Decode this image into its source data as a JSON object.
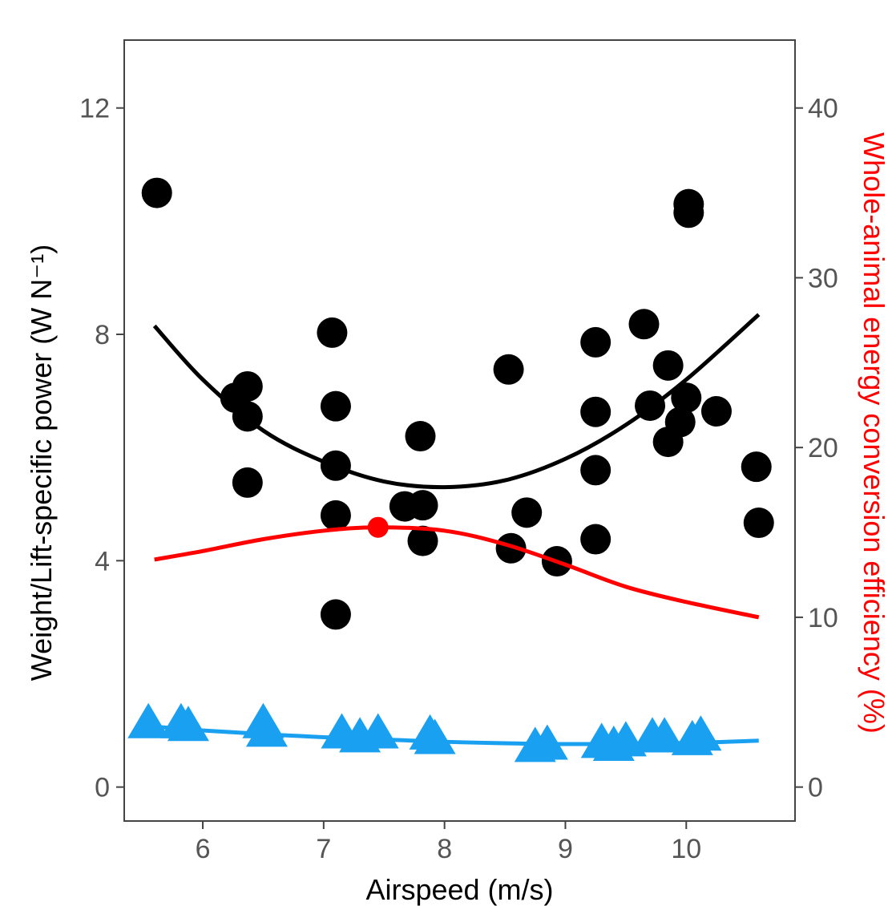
{
  "chart_data": {
    "type": "scatter",
    "xlabel": "Airspeed (m/s)",
    "ylabel_left": "Weight/Lift-specific power (W N⁻¹)",
    "ylabel_right": "Whole-animal energy conversion efficiency (%)",
    "xlim": [
      5.35,
      10.9
    ],
    "ylim_left": [
      -0.6,
      13.2
    ],
    "ylim_right": [
      -2,
      44
    ],
    "x_ticks": [
      6,
      7,
      8,
      9,
      10
    ],
    "y_left_ticks": [
      0,
      4,
      8,
      12
    ],
    "y_right_ticks": [
      0,
      10,
      20,
      30,
      40
    ],
    "grid": false,
    "colors": {
      "black_series": "#000000",
      "blue_series": "#1aa0f0",
      "red_series": "#ff0000",
      "frame": "#444444"
    },
    "series": [
      {
        "marker": "circle",
        "color": "#000000",
        "axis": "left",
        "points": [
          [
            5.62,
            10.5
          ],
          [
            6.27,
            6.88
          ],
          [
            6.37,
            7.08
          ],
          [
            6.37,
            6.55
          ],
          [
            6.37,
            5.38
          ],
          [
            7.07,
            8.03
          ],
          [
            7.1,
            6.73
          ],
          [
            7.1,
            5.68
          ],
          [
            7.1,
            4.8
          ],
          [
            7.1,
            3.05
          ],
          [
            7.67,
            4.96
          ],
          [
            7.8,
            6.2
          ],
          [
            7.82,
            4.98
          ],
          [
            7.82,
            4.35
          ],
          [
            8.53,
            7.38
          ],
          [
            8.55,
            4.22
          ],
          [
            8.68,
            4.85
          ],
          [
            8.93,
            3.99
          ],
          [
            9.25,
            7.86
          ],
          [
            9.25,
            6.63
          ],
          [
            9.25,
            5.6
          ],
          [
            9.25,
            4.38
          ],
          [
            9.65,
            8.18
          ],
          [
            9.7,
            6.74
          ],
          [
            9.85,
            7.45
          ],
          [
            9.85,
            6.1
          ],
          [
            9.95,
            6.45
          ],
          [
            10.0,
            6.88
          ],
          [
            10.02,
            10.3
          ],
          [
            10.02,
            10.15
          ],
          [
            10.25,
            6.64
          ],
          [
            10.58,
            5.66
          ],
          [
            10.6,
            4.67
          ]
        ],
        "fit": {
          "x": [
            5.6,
            6.0,
            6.5,
            7.0,
            7.5,
            8.0,
            8.5,
            9.0,
            9.5,
            10.0,
            10.6
          ],
          "y": [
            8.15,
            7.2,
            6.3,
            5.75,
            5.4,
            5.3,
            5.42,
            5.8,
            6.4,
            7.2,
            8.35
          ]
        }
      },
      {
        "marker": "triangle",
        "color": "#1aa0f0",
        "axis": "left",
        "points": [
          [
            5.55,
            1.1
          ],
          [
            5.82,
            1.1
          ],
          [
            5.88,
            1.05
          ],
          [
            6.5,
            1.1
          ],
          [
            6.53,
            0.95
          ],
          [
            7.15,
            0.92
          ],
          [
            7.3,
            0.85
          ],
          [
            7.45,
            0.92
          ],
          [
            7.88,
            0.9
          ],
          [
            7.92,
            0.82
          ],
          [
            8.75,
            0.68
          ],
          [
            8.85,
            0.72
          ],
          [
            9.3,
            0.75
          ],
          [
            9.4,
            0.7
          ],
          [
            9.5,
            0.78
          ],
          [
            9.72,
            0.85
          ],
          [
            9.82,
            0.85
          ],
          [
            10.05,
            0.8
          ],
          [
            10.12,
            0.88
          ]
        ],
        "fit": {
          "x": [
            5.55,
            6.0,
            7.0,
            8.0,
            9.0,
            10.0,
            10.6
          ],
          "y": [
            1.08,
            1.0,
            0.88,
            0.8,
            0.76,
            0.78,
            0.82
          ]
        }
      },
      {
        "marker": "line",
        "color": "#ff0000",
        "axis": "right",
        "fit": {
          "x": [
            5.6,
            6.0,
            6.5,
            7.0,
            7.45,
            8.0,
            8.5,
            9.0,
            9.5,
            10.0,
            10.6
          ],
          "y": [
            13.4,
            13.9,
            14.6,
            15.1,
            15.3,
            15.1,
            14.3,
            13.1,
            11.8,
            10.9,
            10.0
          ]
        },
        "marker_point": [
          7.45,
          15.3
        ]
      }
    ]
  }
}
